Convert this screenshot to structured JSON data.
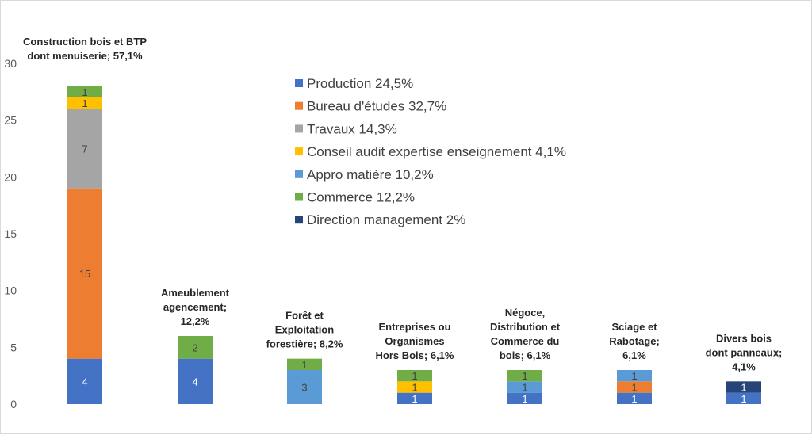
{
  "chart_data": {
    "type": "bar",
    "stacked": true,
    "categories": [
      [
        "Construction bois et BTP",
        "dont menuiserie; 57,1%"
      ],
      [
        "Ameublement",
        "agencement;",
        "12,2%"
      ],
      [
        "Forêt et",
        "Exploitation",
        "forestière; 8,2%"
      ],
      [
        "Entreprises ou",
        "Organismes",
        "Hors Bois; 6,1%"
      ],
      [
        "Négoce,",
        "Distribution et",
        "Commerce du",
        "bois; 6,1%"
      ],
      [
        "Sciage et",
        "Rabotage;",
        "6,1%"
      ],
      [
        "Divers bois",
        "dont panneaux;",
        "4,1%"
      ]
    ],
    "series": [
      {
        "name": "Production 24,5%",
        "color": "#4472c4",
        "values": [
          4,
          4,
          0,
          1,
          1,
          1,
          1
        ]
      },
      {
        "name": "Bureau d'études 32,7%",
        "color": "#ed7d31",
        "values": [
          15,
          0,
          0,
          0,
          0,
          1,
          0
        ]
      },
      {
        "name": "Travaux 14,3%",
        "color": "#a5a5a5",
        "values": [
          7,
          0,
          0,
          0,
          0,
          0,
          0
        ]
      },
      {
        "name": "Conseil audit expertise enseignement 4,1%",
        "color": "#ffc000",
        "values": [
          1,
          0,
          0,
          1,
          0,
          0,
          0
        ]
      },
      {
        "name": "Appro matière 10,2%",
        "color": "#5b9bd5",
        "values": [
          0,
          0,
          3,
          0,
          1,
          1,
          0
        ]
      },
      {
        "name": "Commerce 12,2%",
        "color": "#70ad47",
        "values": [
          1,
          2,
          1,
          1,
          1,
          0,
          0
        ]
      },
      {
        "name": "Direction management 2%",
        "color": "#264478",
        "values": [
          0,
          0,
          0,
          0,
          0,
          0,
          1
        ]
      }
    ],
    "ylim": [
      0,
      30
    ],
    "yticks": [
      0,
      5,
      10,
      15,
      20,
      25,
      30
    ],
    "grid": false,
    "legend_position": "top-center",
    "data_labels": true
  }
}
